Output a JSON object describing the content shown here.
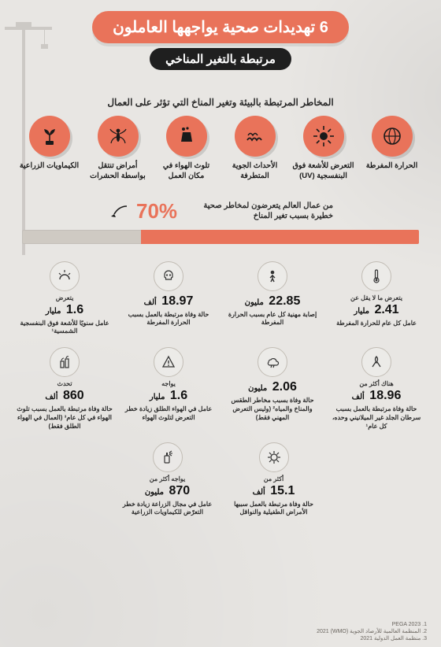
{
  "colors": {
    "accent": "#e9735a",
    "dark": "#1f1f1f",
    "bg": "#e8e6e3",
    "bar_track": "#cfcac3",
    "icon_ring": "#c2bdb5",
    "text": "#1a1a1a"
  },
  "header": {
    "title": "6 تهديدات صحية يواجهها العاملون",
    "subtitle": "مرتبطة بالتغير المناخي"
  },
  "section_title": "المخاطر المرتبطة بالبيئة وتغير المناخ التي تؤثر على العمال",
  "threats": [
    {
      "label": "الحرارة المفرطة",
      "icon": "globe"
    },
    {
      "label": "التعرض للأشعة فوق البنفسجية (UV)",
      "icon": "sun"
    },
    {
      "label": "الأحداث الجوية المتطرفة",
      "icon": "wave"
    },
    {
      "label": "تلوث الهواء في مكان العمل",
      "icon": "bag"
    },
    {
      "label": "أمراض تنتقل بواسطة الحشرات",
      "icon": "mosquito"
    },
    {
      "label": "الكيماويات الزراعية",
      "icon": "plant"
    }
  ],
  "percent": {
    "value": 70,
    "label": "70%",
    "text": "من عمال العالم يتعرضون لمخاطر صحية خطيرة بسبب تغير المناخ"
  },
  "stats_row1": [
    {
      "icon": "therm",
      "lead": "يتعرض ما لا يقل عن",
      "num": "2.41",
      "unit": "مليار",
      "desc": "عامل كل عام للحرارة المفرطة"
    },
    {
      "icon": "person",
      "lead": "",
      "num": "22.85",
      "unit": "مليون",
      "desc": "إصابة مهنية كل عام بسبب الحرارة المفرطة"
    },
    {
      "icon": "skull",
      "lead": "",
      "num": "18.97",
      "unit": "ألف",
      "desc": "حالة وفاة مرتبطة بالعمل بسبب الحرارة المفرطة"
    },
    {
      "icon": "uv",
      "lead": "يتعرض",
      "num": "1.6",
      "unit": "مليار",
      "desc": "عامل سنويًا للأشعة فوق البنفسجية الشمسية¹"
    }
  ],
  "stats_row2": [
    {
      "icon": "ribbon",
      "lead": "هناك أكثر من",
      "num": "18.96",
      "unit": "ألف",
      "desc": "حالة وفاة مرتبطة بالعمل بسبب سرطان الجلد غير الميلانيني وحده، كل عام¹"
    },
    {
      "icon": "storm",
      "lead": "",
      "num": "2.06",
      "unit": "مليون",
      "desc": "حالة وفاة بسبب مخاطر الطقس والمناخ والمياه² (وليس التعرض المهني فقط)"
    },
    {
      "icon": "warn",
      "lead": "يواجه",
      "num": "1.6",
      "unit": "مليار",
      "desc": "عامل في الهواء الطلق زيادة خطر التعرض لتلوث الهواء"
    },
    {
      "icon": "smog",
      "lead": "تحدث",
      "num": "860",
      "unit": "ألف",
      "desc": "حالة وفاة مرتبطة بالعمل بسبب تلوث الهواء في كل عام³ (العمال في الهواء الطلق فقط)"
    }
  ],
  "stats_row3": [
    {
      "icon": "virus",
      "lead": "أكثر من",
      "num": "15.1",
      "unit": "ألف",
      "desc": "حالة وفاة مرتبطة بالعمل سببها الأمراض الطفيلية والنواقل"
    },
    {
      "icon": "spray",
      "lead": "يواجه أكثر من",
      "num": "870",
      "unit": "مليون",
      "desc": "عامل في مجال الزراعة زيادة خطر التعرّض للكيماويات الزراعية"
    }
  ],
  "footnotes": [
    "1. PEGA 2023",
    "2. المنظمة العالمية للأرصاد الجوية (WMO) 2021",
    "3. منظمة العمل الدولية 2021"
  ]
}
